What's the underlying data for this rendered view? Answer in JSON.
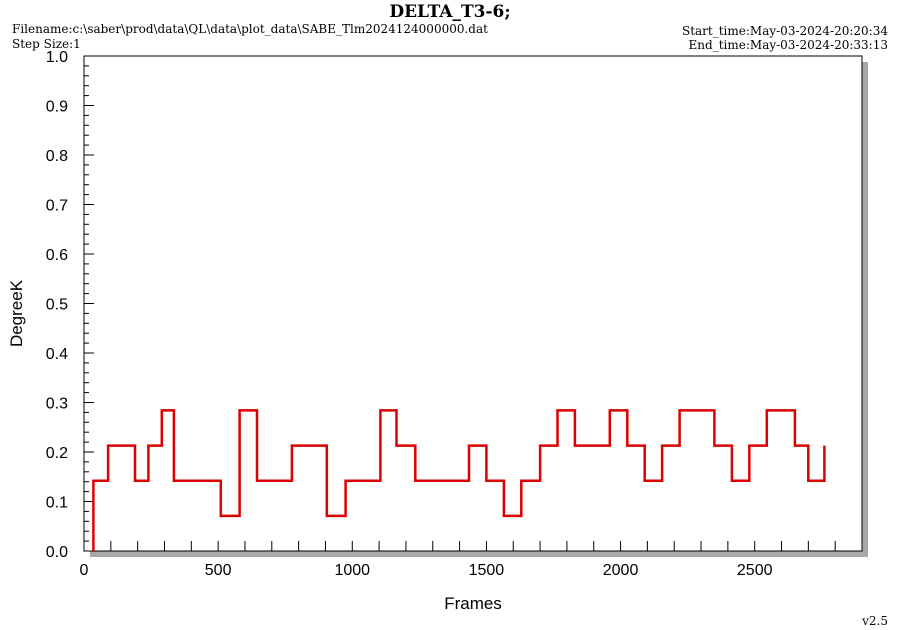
{
  "header": {
    "title": "DELTA_T3-6;",
    "filename": "Filename:c:\\saber\\prod\\data\\QL\\data\\plot_data\\SABE_Tlm2024124000000.dat",
    "step_size": "Step Size:1",
    "start_time": "Start_time:May-03-2024-20:20:34",
    "end_time": "End_time:May-03-2024-20:33:13"
  },
  "footer": {
    "version": "v2.5"
  },
  "colors": {
    "series": "#dd0000",
    "shadow": "#a8a8a8"
  },
  "chart_data": {
    "type": "line",
    "title": "DELTA_T3-6;",
    "xlabel": "Frames",
    "ylabel": "DegreeK",
    "xlim": [
      0,
      2900
    ],
    "ylim": [
      0,
      1.0
    ],
    "x_ticks": [
      "0",
      "500",
      "1000",
      "1500",
      "2000",
      "2500"
    ],
    "y_ticks": [
      "0.0",
      "0.1",
      "0.2",
      "0.3",
      "0.4",
      "0.5",
      "0.6",
      "0.7",
      "0.8",
      "0.9",
      "1.0"
    ],
    "grid": false,
    "series": [
      {
        "name": "",
        "x": [
          35,
          35,
          90,
          90,
          190,
          190,
          240,
          240,
          290,
          290,
          335,
          335,
          510,
          510,
          580,
          580,
          645,
          645,
          775,
          775,
          905,
          905,
          975,
          975,
          1105,
          1105,
          1165,
          1165,
          1235,
          1235,
          1435,
          1435,
          1500,
          1500,
          1565,
          1565,
          1630,
          1630,
          1700,
          1700,
          1765,
          1765,
          1830,
          1830,
          1960,
          1960,
          2025,
          2025,
          2090,
          2090,
          2155,
          2155,
          2220,
          2220,
          2350,
          2350,
          2415,
          2415,
          2480,
          2480,
          2545,
          2545,
          2650,
          2650,
          2700,
          2700,
          2760,
          2760
        ],
        "y": [
          0.0,
          0.142,
          0.142,
          0.213,
          0.213,
          0.142,
          0.142,
          0.213,
          0.213,
          0.284,
          0.284,
          0.142,
          0.142,
          0.071,
          0.071,
          0.284,
          0.284,
          0.142,
          0.142,
          0.213,
          0.213,
          0.071,
          0.071,
          0.142,
          0.142,
          0.284,
          0.284,
          0.213,
          0.213,
          0.142,
          0.142,
          0.213,
          0.213,
          0.142,
          0.142,
          0.071,
          0.071,
          0.142,
          0.142,
          0.213,
          0.213,
          0.284,
          0.284,
          0.213,
          0.213,
          0.284,
          0.284,
          0.213,
          0.213,
          0.142,
          0.142,
          0.213,
          0.213,
          0.284,
          0.284,
          0.213,
          0.213,
          0.142,
          0.142,
          0.213,
          0.213,
          0.284,
          0.284,
          0.213,
          0.213,
          0.142,
          0.142,
          0.213
        ]
      }
    ]
  }
}
